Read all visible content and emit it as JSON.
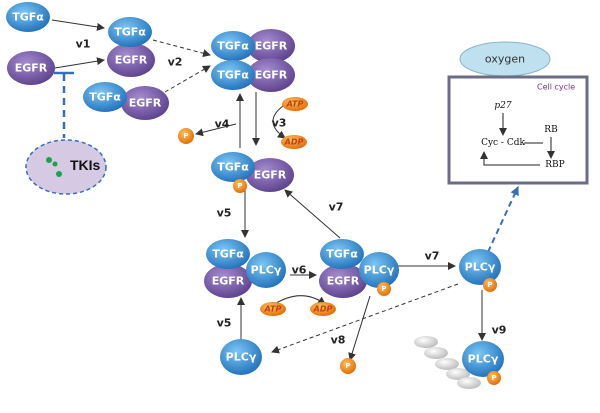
{
  "labels": {
    "tgfa": "TGFα",
    "egfr": "EGFR",
    "plcg": "PLCγ",
    "p": "P",
    "atp": "ATP",
    "adp": "ADP",
    "tkis": "TKIs",
    "oxygen": "oxygen"
  },
  "reactions": [
    "v1",
    "v2",
    "v3",
    "v4",
    "v5",
    "v6",
    "v7",
    "v8",
    "v9"
  ],
  "cell_cycle": {
    "title": "Cell cycle",
    "p27": "p27",
    "cyc_cdk": "Cyc - Cdk",
    "rb": "RB",
    "rbp": "RBP"
  },
  "colors": {
    "tgfa": "#2f8fd8",
    "egfr": "#7b5fa8",
    "plcg": "#2b7cc4",
    "phosphate": "#f08a1a",
    "tki_fill": "#c9b8dc",
    "oxygen_fill": "#bfe0ee"
  }
}
